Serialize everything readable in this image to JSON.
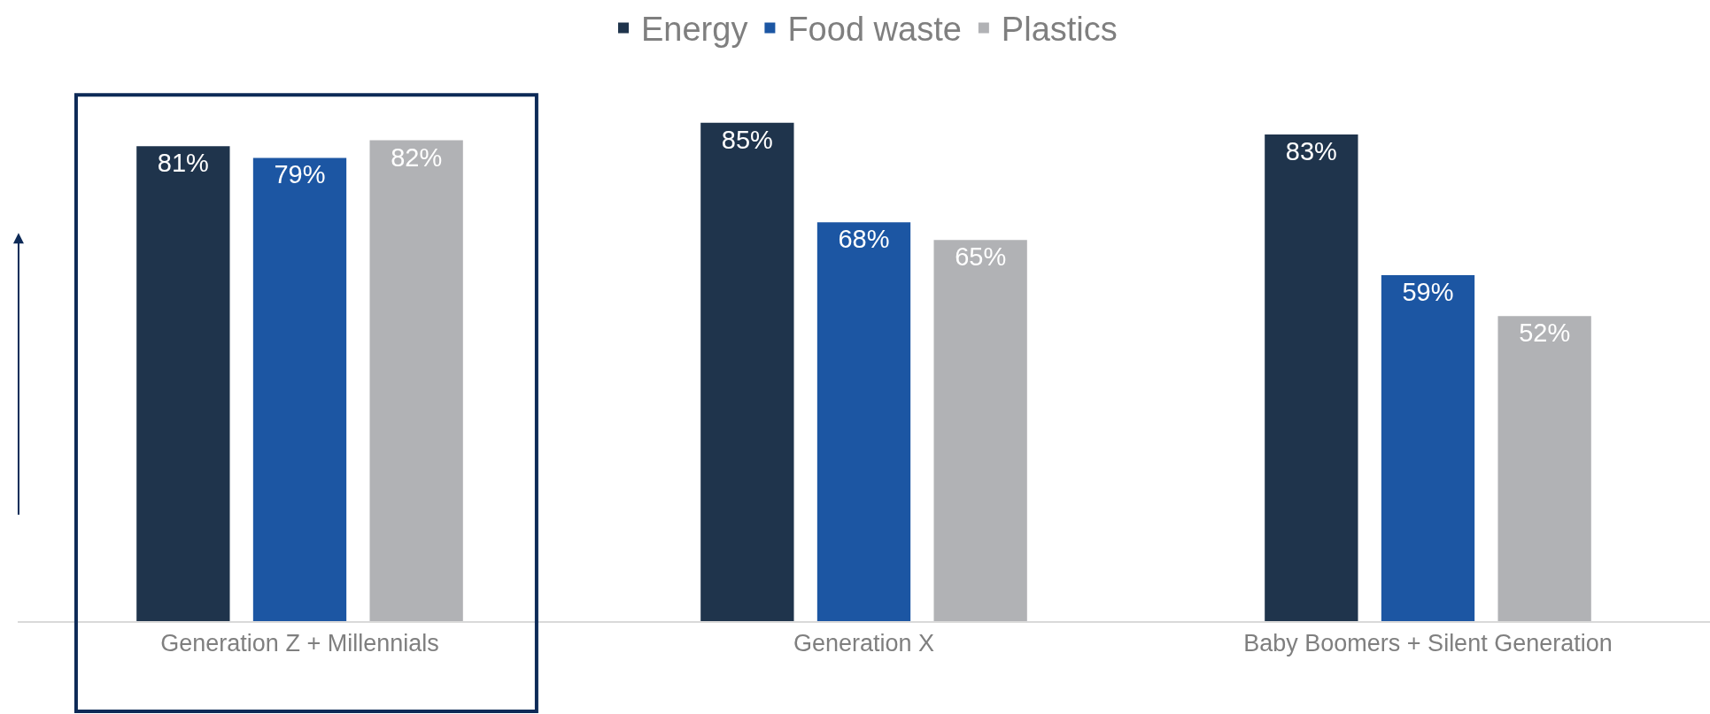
{
  "chart_data": {
    "type": "bar",
    "categories": [
      "Generation Z + Millennials",
      "Generation X",
      "Baby Boomers + Silent Generation"
    ],
    "series": [
      {
        "name": "Energy",
        "color": "#1f344c",
        "values": [
          81,
          85,
          83
        ],
        "value_labels": [
          "81%",
          "85%",
          "83%"
        ]
      },
      {
        "name": "Food waste",
        "color": "#1c56a3",
        "values": [
          79,
          68,
          59
        ],
        "value_labels": [
          "79%",
          "68%",
          "59%"
        ]
      },
      {
        "name": "Plastics",
        "color": "#b1b2b5",
        "values": [
          82,
          65,
          52
        ],
        "value_labels": [
          "82%",
          "65%",
          "52%"
        ]
      }
    ],
    "legend": "top",
    "tick_labels": "x"
  }
}
